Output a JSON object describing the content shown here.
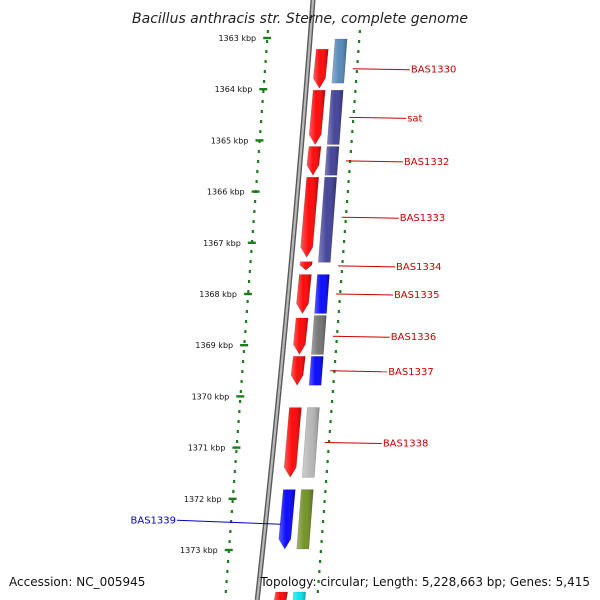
{
  "title": "Bacillus anthracis str. Sterne, complete genome",
  "footer": {
    "accession": "Accession: NC_005945",
    "summary": "Topology: circular; Length: 5,228,663 bp; Genes: 5,415"
  },
  "colors": {
    "ruler": "#1e7b1e",
    "backbone": "#8f8f8f",
    "label_right": "#cc0000",
    "label_left": "#0000cc",
    "forward_gene": "#ff0000",
    "navy_gene": "#3d3d96",
    "blue_gene": "#0000ff",
    "gray_gene": "#707070",
    "lightgray_gene": "#b5b5b5",
    "olive_gene": "#6f8f1f",
    "steelblue_gene": "#4f86b8",
    "cyan_gene": "#00e5ee"
  },
  "ruler": {
    "unit": "kbp",
    "ticks": [
      {
        "position": 1363,
        "label": "1363 kbp"
      },
      {
        "position": 1364,
        "label": "1364 kbp"
      },
      {
        "position": 1365,
        "label": "1365 kbp"
      },
      {
        "position": 1366,
        "label": "1366 kbp"
      },
      {
        "position": 1367,
        "label": "1367 kbp"
      },
      {
        "position": 1368,
        "label": "1368 kbp"
      },
      {
        "position": 1369,
        "label": "1369 kbp"
      },
      {
        "position": 1370,
        "label": "1370 kbp"
      },
      {
        "position": 1371,
        "label": "1371 kbp"
      },
      {
        "position": 1372,
        "label": "1372 kbp"
      },
      {
        "position": 1373,
        "label": "1373 kbp"
      }
    ]
  },
  "genes": [
    {
      "name": "BAS1330",
      "label": "BAS1330",
      "strand": "forward",
      "color": "#ff0000",
      "start": 1363.2,
      "end": 1364.0,
      "label_side": "right"
    },
    {
      "name": "BAS1330-r",
      "label": "",
      "strand": "reverse",
      "color": "#4f86b8",
      "start": 1363.0,
      "end": 1363.9
    },
    {
      "name": "sat",
      "label": "sat",
      "strand": "forward",
      "color": "#ff0000",
      "start": 1364.0,
      "end": 1365.1,
      "label_side": "right"
    },
    {
      "name": "sat-r",
      "label": "",
      "strand": "reverse",
      "color": "#3d3d96",
      "start": 1364.0,
      "end": 1365.1
    },
    {
      "name": "BAS1332",
      "label": "BAS1332",
      "strand": "forward",
      "color": "#ff0000",
      "start": 1365.1,
      "end": 1365.7,
      "label_side": "right"
    },
    {
      "name": "BAS1332-r",
      "label": "",
      "strand": "reverse",
      "color": "#3d3d96",
      "start": 1365.1,
      "end": 1365.7
    },
    {
      "name": "BAS1333",
      "label": "BAS1333",
      "strand": "forward",
      "color": "#ff0000",
      "start": 1365.7,
      "end": 1367.3,
      "label_side": "right"
    },
    {
      "name": "BAS1333-r",
      "label": "",
      "strand": "reverse",
      "color": "#3d3d96",
      "start": 1365.7,
      "end": 1367.4
    },
    {
      "name": "BAS1334",
      "label": "BAS1334",
      "strand": "forward",
      "color": "#ff0000",
      "start": 1367.35,
      "end": 1367.55,
      "label_side": "right"
    },
    {
      "name": "BAS1335",
      "label": "BAS1335",
      "strand": "forward",
      "color": "#ff0000",
      "start": 1367.6,
      "end": 1368.4,
      "label_side": "right"
    },
    {
      "name": "BAS1335-r",
      "label": "",
      "strand": "reverse",
      "color": "#0000ff",
      "start": 1367.6,
      "end": 1368.4
    },
    {
      "name": "BAS1336",
      "label": "BAS1336",
      "strand": "forward",
      "color": "#ff0000",
      "start": 1368.45,
      "end": 1369.2,
      "label_side": "right"
    },
    {
      "name": "BAS1336-r",
      "label": "",
      "strand": "reverse",
      "color": "#707070",
      "start": 1368.4,
      "end": 1369.2
    },
    {
      "name": "BAS1337",
      "label": "BAS1337",
      "strand": "forward",
      "color": "#ff0000",
      "start": 1369.2,
      "end": 1369.8,
      "label_side": "right"
    },
    {
      "name": "BAS1337-r",
      "label": "",
      "strand": "reverse",
      "color": "#0000ff",
      "start": 1369.2,
      "end": 1369.8
    },
    {
      "name": "BAS1338",
      "label": "BAS1338",
      "strand": "forward",
      "color": "#ff0000",
      "start": 1370.2,
      "end": 1371.6,
      "label_side": "right"
    },
    {
      "name": "BAS1338-r",
      "label": "",
      "strand": "reverse",
      "color": "#b5b5b5",
      "start": 1370.2,
      "end": 1371.6
    },
    {
      "name": "BAS1339",
      "label": "BAS1339",
      "strand": "forward",
      "color": "#0000ff",
      "start": 1371.8,
      "end": 1373.0,
      "label_side": "left"
    },
    {
      "name": "BAS1339-r",
      "label": "",
      "strand": "reverse",
      "color": "#6f8f1f",
      "start": 1371.8,
      "end": 1373.0
    },
    {
      "name": "tail-a",
      "label": "",
      "strand": "forward",
      "color": "#ff0000",
      "start": 1373.8,
      "end": 1374.2
    },
    {
      "name": "tail-b",
      "label": "",
      "strand": "reverse",
      "color": "#00e5ee",
      "start": 1373.8,
      "end": 1374.2
    }
  ]
}
